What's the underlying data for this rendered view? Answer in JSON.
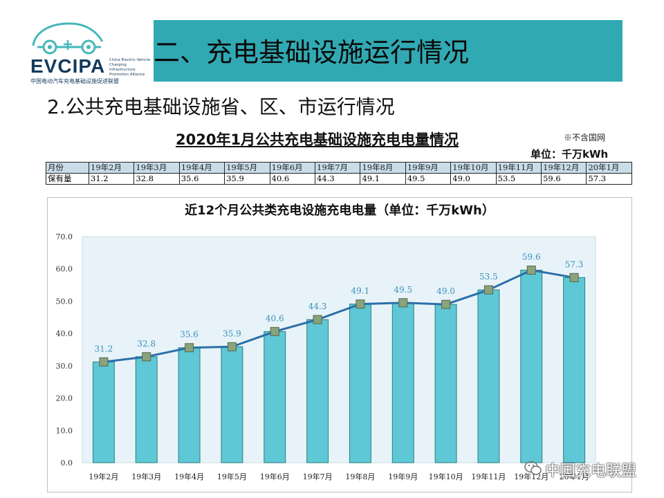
{
  "header": {
    "logo_brand": "EVCIPA",
    "logo_en": "China Electric Vehicle Charging Infrastructure Promotion Alliance",
    "logo_cn": "中国电动汽车充电基础设施促进联盟",
    "section_title": "二、充电基础设施运行情况",
    "subtitle": "2.公共充电基础设施省、区、市运行情况"
  },
  "table": {
    "title": "2020年1月公共充电基础设施充电电量情况",
    "note": "※不含国网",
    "unit": "单位：千万kWh",
    "row_header_month": "月份",
    "row_header_value": "保有量",
    "months": [
      "19年2月",
      "19年3月",
      "19年4月",
      "19年5月",
      "19年6月",
      "19年7月",
      "19年8月",
      "19年9月",
      "19年10月",
      "19年11月",
      "19年12月",
      "20年1月"
    ],
    "values": [
      "31.2",
      "32.8",
      "35.6",
      "35.9",
      "40.6",
      "44.3",
      "49.1",
      "49.5",
      "49.0",
      "53.5",
      "59.6",
      "57.3"
    ]
  },
  "chart_data": {
    "type": "bar",
    "title": "近12个月公共类充电设施充电电量（单位：千万kWh）",
    "xlabel": "",
    "ylabel": "",
    "categories": [
      "19年2月",
      "19年3月",
      "19年4月",
      "19年5月",
      "19年6月",
      "19年7月",
      "19年8月",
      "19年9月",
      "19年10月",
      "19年11月",
      "19年12月",
      "20年1月"
    ],
    "values": [
      31.2,
      32.8,
      35.6,
      35.9,
      40.6,
      44.3,
      49.1,
      49.5,
      49.0,
      53.5,
      59.6,
      57.3
    ],
    "data_labels": [
      "31.2",
      "32.8",
      "35.6",
      "35.9",
      "40.6",
      "44.3",
      "49.1",
      "49.5",
      "49.0",
      "53.5",
      "59.6",
      "57.3"
    ],
    "overlay": "line",
    "ylim": [
      0,
      70
    ],
    "yticks": [
      "0.0",
      "10.0",
      "20.0",
      "30.0",
      "40.0",
      "50.0",
      "60.0",
      "70.0"
    ],
    "legend": "none",
    "colors": {
      "bar": "#5ec8d6",
      "line": "#2b6fa8",
      "marker": "#8aa37a",
      "label": "#3a8fbf",
      "plot_bg": "#e7f3f8"
    }
  },
  "watermark": {
    "text": "中国充电联盟"
  }
}
